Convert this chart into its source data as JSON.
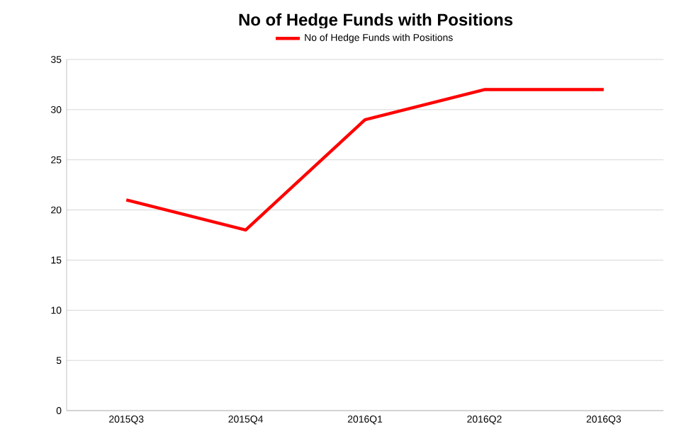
{
  "chart_data": {
    "type": "line",
    "title": "No of Hedge Funds with Positions",
    "categories": [
      "2015Q3",
      "2015Q4",
      "2016Q1",
      "2016Q2",
      "2016Q3"
    ],
    "series": [
      {
        "name": "No of Hedge Funds with Positions",
        "color": "#ff0000",
        "values": [
          21,
          18,
          29,
          32,
          32
        ]
      }
    ],
    "ylim": [
      0,
      35
    ],
    "yticks": [
      0,
      5,
      10,
      15,
      20,
      25,
      30,
      35
    ],
    "grid": "y",
    "legend": "top",
    "marker": "none",
    "line_style": "solid"
  }
}
